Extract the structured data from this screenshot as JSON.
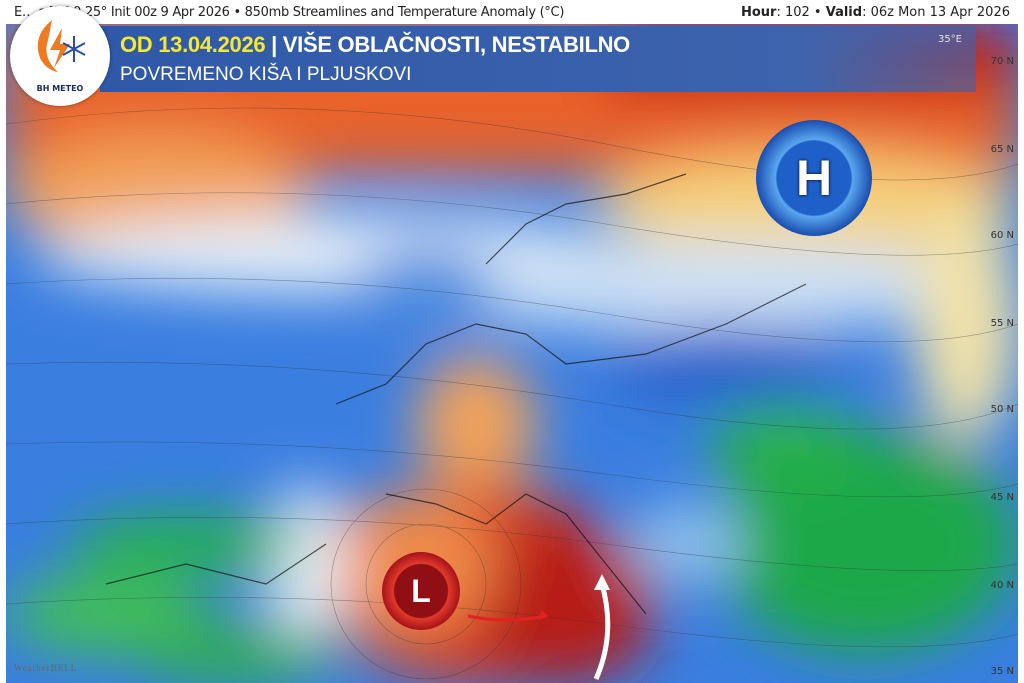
{
  "header": {
    "model_line": "E… s [M] 0.25° Init 00z 9 Apr 2026 • 850mb Streamlines and Temperature Anomaly (°C)",
    "hour_label": "Hour",
    "hour_value": "102",
    "valid_label": "Valid",
    "valid_value": "06z Mon 13 Apr 2026"
  },
  "banner": {
    "date": "OD 13.04.2026",
    "title": " | VIŠE OBLAČNOSTI, NESTABILNO",
    "subtitle": "POVREMENO KIŠA I PLJUSKOVI"
  },
  "logo": {
    "text": "BH METEO"
  },
  "map": {
    "lon_label": "35°E",
    "lat_labels": [
      "70 N",
      "65 N",
      "60 N",
      "55 N",
      "50 N",
      "45 N",
      "40 N",
      "35 N"
    ],
    "high_symbol": "H",
    "low_symbol": "L",
    "watermark": "WeatherBELL",
    "colors": {
      "warm": "#d9361a",
      "orange": "#f08a3a",
      "cold": "#2f6fd8",
      "light_blue": "#9fc7ef",
      "green": "#22b34a",
      "high": "#1f5fc8",
      "low": "#a8141c"
    }
  }
}
